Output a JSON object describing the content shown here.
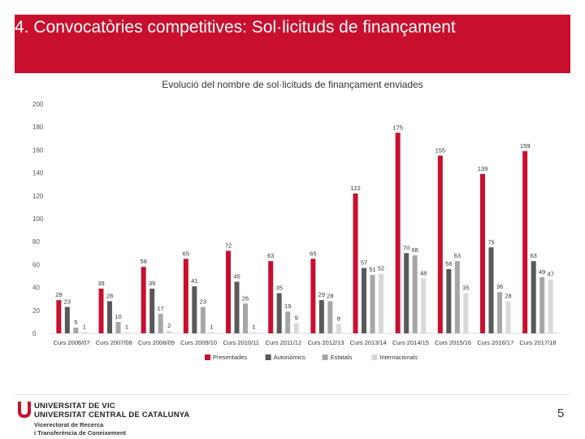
{
  "header": {
    "title": "4. Convocatòries competitives: Sol·licituds de finançament"
  },
  "colors": {
    "header_bg": "#c8102e"
  },
  "chart_data": {
    "type": "bar",
    "title": "Evolució del nombre de sol·licituds de finançament enviades",
    "ylim": [
      0,
      200
    ],
    "yticks": [
      0,
      20,
      40,
      60,
      80,
      100,
      120,
      140,
      160,
      180,
      200
    ],
    "categories": [
      "Curs 2006/07",
      "Curs 2007/08",
      "Curs 2008/09",
      "Curs 2009/10",
      "Curs 2010/11",
      "Curs 2011/12",
      "Curs 2012/13",
      "Curs 2013/14",
      "Curs 2014/15",
      "Curs 2015/16",
      "Curs 2016/17",
      "Curs 2017/18"
    ],
    "series": [
      {
        "name": "Presentades",
        "color": "#c8102e",
        "values": [
          29,
          39,
          58,
          65,
          72,
          63,
          65,
          122,
          175,
          155,
          139,
          159
        ]
      },
      {
        "name": "Autonòmics",
        "color": "#595959",
        "values": [
          23,
          28,
          39,
          41,
          45,
          35,
          29,
          57,
          70,
          56,
          75,
          63
        ]
      },
      {
        "name": "Estatals",
        "color": "#a6a6a6",
        "values": [
          5,
          10,
          17,
          23,
          26,
          19,
          28,
          51,
          68,
          63,
          36,
          49
        ]
      },
      {
        "name": "Internacionals",
        "color": "#d9d9d9",
        "values": [
          1,
          1,
          2,
          1,
          1,
          9,
          8,
          52,
          48,
          35,
          28,
          47
        ]
      }
    ],
    "legend_position": "bottom"
  },
  "footer": {
    "university_line1": "UNIVERSITAT DE VIC",
    "university_line2": "UNIVERSITAT CENTRAL DE CATALUNYA",
    "vicerectorat_line1": "Vicerectorat de Recerca",
    "vicerectorat_line2": "i Transferència de Coneixement",
    "page_number": "5"
  }
}
